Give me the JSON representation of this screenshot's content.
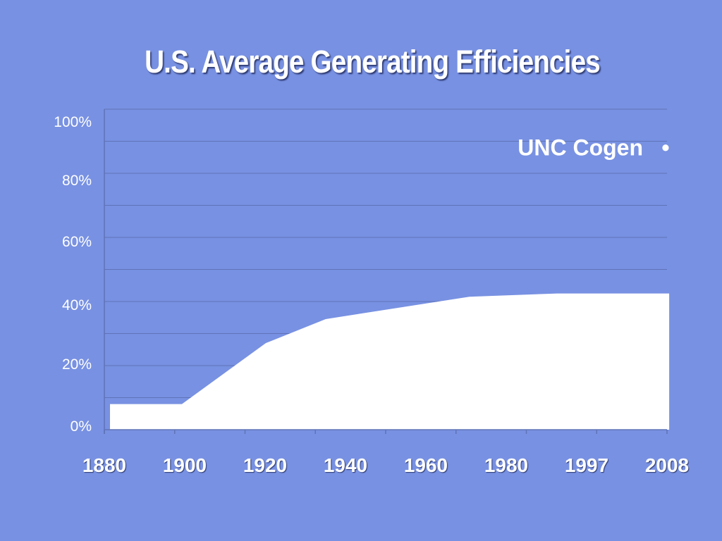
{
  "chart_data": {
    "type": "area",
    "title": "U.S. Average Generating Efficiencies",
    "categories": [
      "1880",
      "1900",
      "1920",
      "1940",
      "1960",
      "1980",
      "1997",
      "2008"
    ],
    "y_tick_labels": [
      "100%",
      "80%",
      "60%",
      "40%",
      "20%",
      "0%"
    ],
    "ylim": [
      0,
      100
    ],
    "grid": true,
    "series": [
      {
        "x": [
          0,
          0.9,
          1.95,
          2.7,
          4.5,
          5.6,
          7.0
        ],
        "values": [
          8,
          8,
          27,
          34.5,
          41.5,
          42.5,
          42.5
        ]
      }
    ],
    "annotations": [
      {
        "text": "UNC Cogen",
        "marker": "•",
        "value": 88
      }
    ],
    "colors": {
      "background": "#7891e2",
      "fill": "#ffffff",
      "grid": "#5f73b7",
      "text": "#ffffff"
    }
  }
}
